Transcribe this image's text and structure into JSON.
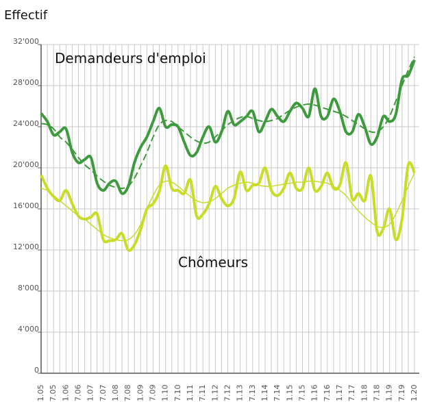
{
  "chart_data": {
    "type": "line",
    "title": "Effectif",
    "categories": [
      "1.05",
      null,
      "7.05",
      null,
      "1.06",
      null,
      "7.06",
      null,
      "1.07",
      null,
      "7.07",
      null,
      "1.08",
      null,
      "7.08",
      null,
      "1.09",
      null,
      "7.09",
      null,
      "1.10",
      null,
      "7.10",
      null,
      "1.11",
      null,
      "7.11",
      null,
      "1.12",
      null,
      "7.12",
      null,
      "1.13",
      null,
      "7.13",
      null,
      "1.14",
      null,
      "7.14",
      null,
      "1.15",
      null,
      "7.15",
      null,
      "1.16",
      null,
      "7.16",
      null,
      "1.17",
      null,
      "7.17",
      null,
      "1.18",
      null,
      "7.18",
      null,
      "1.19",
      null,
      "7.19",
      null,
      "1.20"
    ],
    "series": [
      {
        "name": "Demandeurs d'emploi",
        "color": "#3d9a3d",
        "line_width": 4,
        "line_style": "solid",
        "values": [
          25300,
          24500,
          23200,
          23500,
          23800,
          21500,
          20500,
          20800,
          21000,
          18500,
          17800,
          18500,
          18700,
          17500,
          18200,
          20500,
          22000,
          23000,
          24500,
          25800,
          24000,
          24200,
          24000,
          22500,
          21200,
          21500,
          23000,
          24000,
          22500,
          23500,
          25500,
          24200,
          24500,
          25000,
          25500,
          23500,
          24500,
          25700,
          25000,
          24500,
          25500,
          26300,
          25800,
          25000,
          27700,
          25000,
          25000,
          26700,
          25500,
          23500,
          23500,
          25200,
          24000,
          22300,
          23000,
          25000,
          24500,
          25200,
          28600,
          29000,
          30500
        ]
      },
      {
        "color": "#3d9a3d",
        "line_width": 2,
        "line_style": "dashed",
        "values": [
          24300,
          24200,
          23800,
          23000,
          22500,
          21800,
          21000,
          20300,
          19800,
          19200,
          18700,
          18300,
          18100,
          18000,
          18200,
          19000,
          20200,
          21500,
          23000,
          24200,
          24600,
          24500,
          24000,
          23500,
          23000,
          22600,
          22400,
          22500,
          23000,
          23600,
          24200,
          24600,
          24900,
          25000,
          24800,
          24600,
          24500,
          24600,
          24800,
          25200,
          25600,
          25900,
          26100,
          26200,
          26100,
          25900,
          25700,
          25500,
          25300,
          25000,
          24600,
          24200,
          23800,
          23500,
          23500,
          24000,
          25000,
          26500,
          28000,
          29500,
          30800
        ]
      },
      {
        "name": "Chômeurs",
        "color": "#c8dc28",
        "line_width": 4,
        "line_style": "solid",
        "values": [
          19300,
          18000,
          17200,
          16800,
          17800,
          16500,
          15300,
          15000,
          15200,
          15500,
          13000,
          12900,
          13000,
          13600,
          12000,
          12500,
          14000,
          16000,
          16500,
          17700,
          20200,
          18000,
          17800,
          17500,
          18800,
          15300,
          15500,
          16500,
          18200,
          17000,
          16300,
          17000,
          19600,
          17800,
          18300,
          18500,
          20000,
          17800,
          17300,
          18000,
          19500,
          18000,
          18000,
          20000,
          17800,
          18200,
          19500,
          18000,
          18300,
          20500,
          17000,
          17500,
          16800,
          19200,
          13800,
          14100,
          16000,
          13000,
          15000,
          20300,
          19500
        ]
      },
      {
        "color": "#c8dc28",
        "line_width": 1.5,
        "line_style": "solid",
        "values": [
          18000,
          17800,
          17300,
          16800,
          16300,
          15800,
          15300,
          15000,
          14500,
          14000,
          13500,
          13200,
          13000,
          12900,
          13000,
          13500,
          14500,
          16000,
          17300,
          18300,
          18700,
          18600,
          18200,
          17700,
          17200,
          16800,
          16600,
          16700,
          17000,
          17500,
          18000,
          18300,
          18500,
          18600,
          18500,
          18300,
          18200,
          18200,
          18300,
          18400,
          18500,
          18600,
          18600,
          18700,
          18700,
          18600,
          18500,
          18200,
          17800,
          17300,
          16500,
          15800,
          15200,
          14700,
          14300,
          14200,
          14500,
          15500,
          16800,
          18200,
          19500
        ]
      }
    ],
    "ylim": [
      0,
      32000
    ],
    "yticks": [
      0,
      {
        "value": 4000,
        "label": "4'000"
      },
      {
        "value": 8000,
        "label": "8'000"
      },
      {
        "value": 12000,
        "label": "12'000"
      },
      {
        "value": 16000,
        "label": "16'000"
      },
      {
        "value": 20000,
        "label": "20'000"
      },
      {
        "value": 24000,
        "label": "24'000"
      },
      {
        "value": 28000,
        "label": "28'000"
      },
      {
        "value": 32000,
        "label": "32'000"
      }
    ],
    "grid": true
  }
}
